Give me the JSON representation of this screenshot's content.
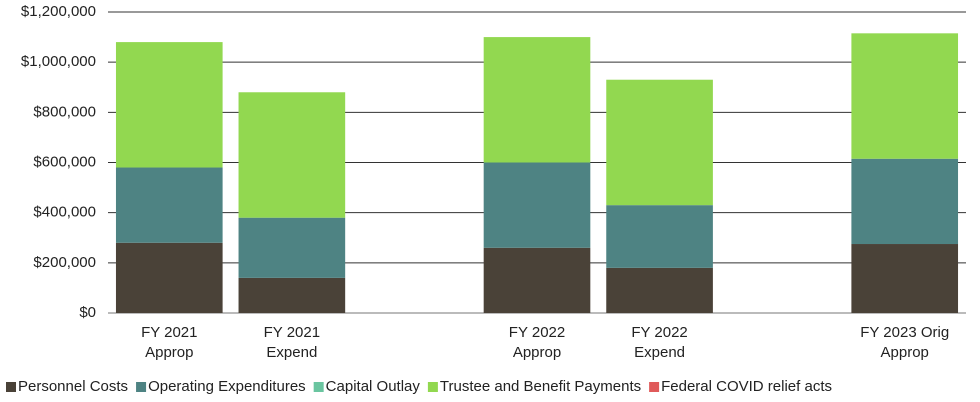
{
  "chart_data": {
    "type": "stacked_bar",
    "categories": [
      "FY 2021\nApprop",
      "FY 2021\nExpend",
      null,
      "FY 2022\nApprop",
      "FY 2022\nExpend",
      null,
      "FY 2023 Orig\nApprop"
    ],
    "series": [
      {
        "name": "Personnel Costs",
        "color": "#4a4238",
        "values": [
          280000,
          140000,
          null,
          260000,
          180000,
          null,
          275000
        ]
      },
      {
        "name": "Operating Expenditures",
        "color": "#4e8383",
        "values": [
          300000,
          240000,
          null,
          340000,
          250000,
          null,
          340000
        ]
      },
      {
        "name": "Capital Outlay",
        "color": "#6ac5a0",
        "values": [
          0,
          0,
          null,
          0,
          0,
          null,
          0
        ]
      },
      {
        "name": "Trustee and Benefit Payments",
        "color": "#92d850",
        "values": [
          500000,
          500000,
          null,
          500000,
          500000,
          null,
          500000
        ]
      },
      {
        "name": "Federal COVID relief acts",
        "color": "#e05a5a",
        "values": [
          0,
          0,
          null,
          0,
          0,
          null,
          0
        ]
      }
    ],
    "ylim": [
      0,
      1200000
    ],
    "yticks": [
      {
        "value": 0,
        "label": "$0"
      },
      {
        "value": 200000,
        "label": "$200,000"
      },
      {
        "value": 400000,
        "label": "$400,000"
      },
      {
        "value": 600000,
        "label": "$600,000"
      },
      {
        "value": 800000,
        "label": "$800,000"
      },
      {
        "value": 1000000,
        "label": "$1,000,000"
      },
      {
        "value": 1200000,
        "label": "$1,200,000"
      }
    ],
    "grid": true,
    "legend": "bottom"
  }
}
